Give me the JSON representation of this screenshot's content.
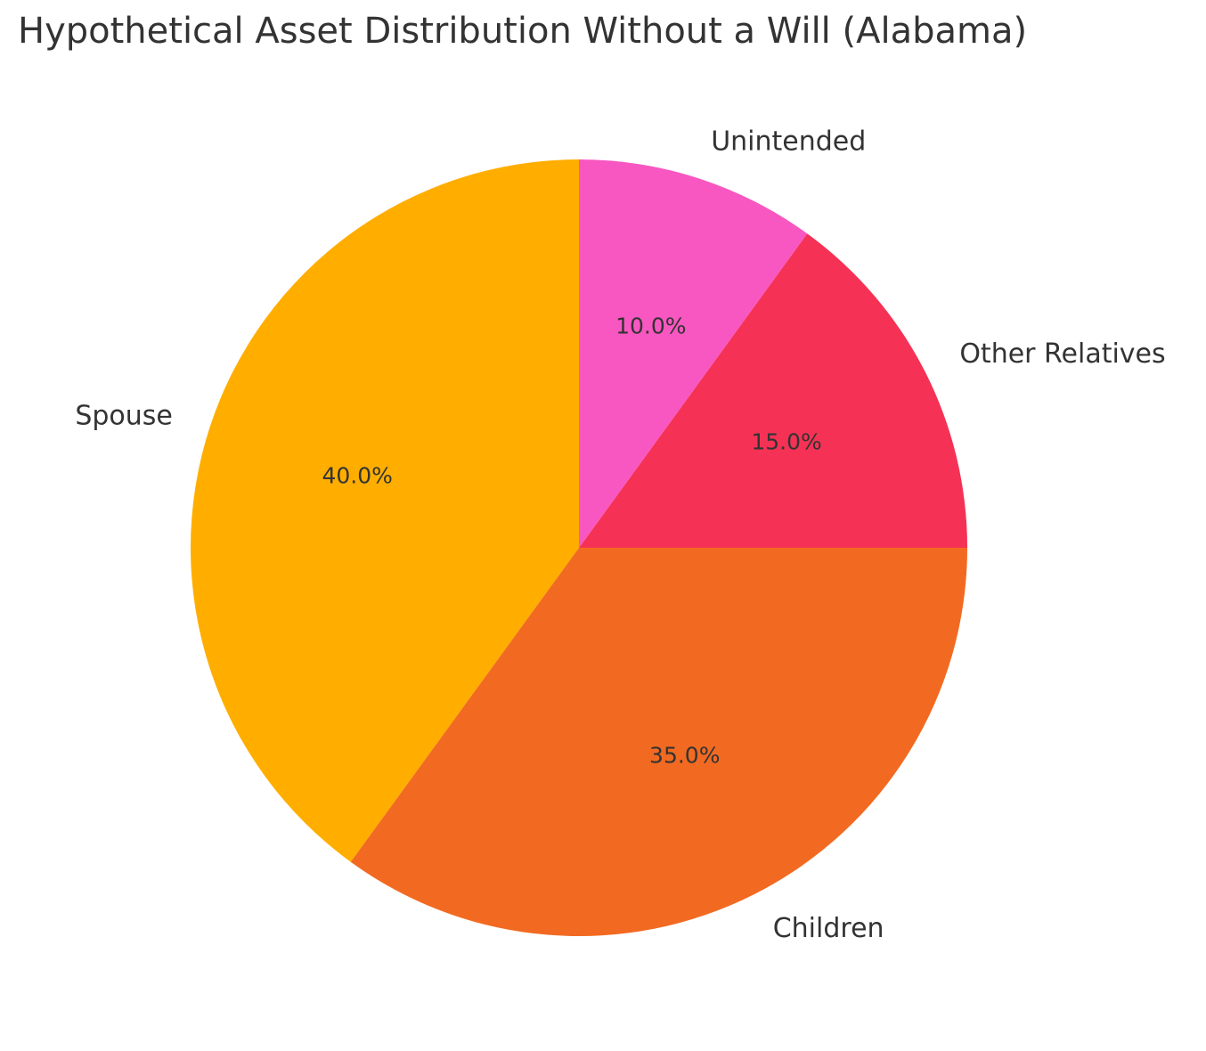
{
  "chart_data": {
    "type": "pie",
    "title": "Hypothetical Asset Distribution Without a Will (Alabama)",
    "start_angle_deg": 90,
    "direction": "counterclockwise",
    "slices": [
      {
        "label": "Spouse",
        "value": 40.0,
        "pct_label": "40.0%",
        "color": "#FFAE00"
      },
      {
        "label": "Children",
        "value": 35.0,
        "pct_label": "35.0%",
        "color": "#F26A21"
      },
      {
        "label": "Other Relatives",
        "value": 15.0,
        "pct_label": "15.0%",
        "color": "#F53255"
      },
      {
        "label": "Unintended",
        "value": 10.0,
        "pct_label": "10.0%",
        "color": "#F857C1"
      }
    ]
  }
}
